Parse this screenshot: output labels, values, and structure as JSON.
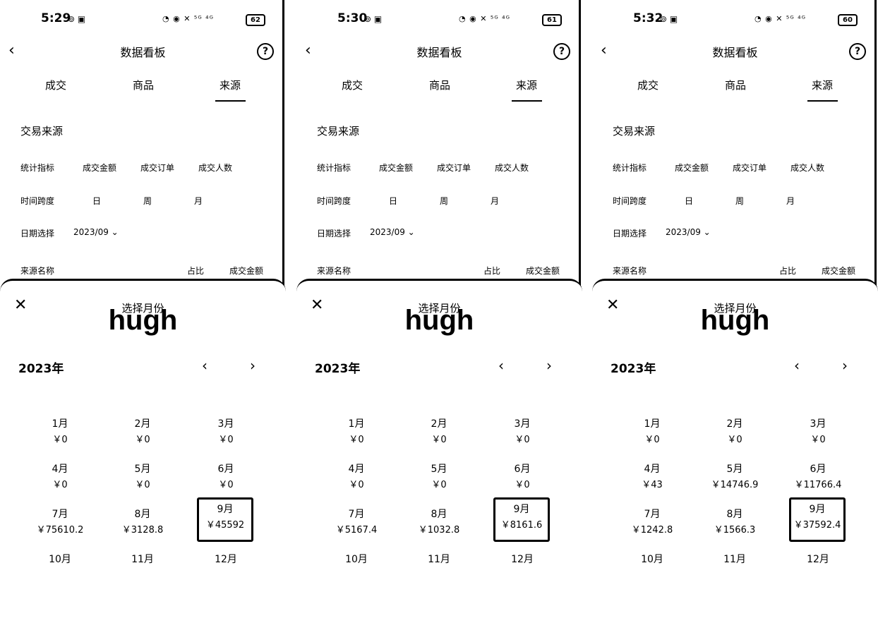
{
  "panels": [
    {
      "status": {
        "time": "5:29",
        "icons": "⊚ ▣",
        "sys": "◔ ◉ ✕ ⁵ᴳ ⁴ᴳ",
        "battery": "62"
      },
      "nav": {
        "back": "‹",
        "title": "数据看板",
        "help": "?"
      },
      "tabs": [
        "成交",
        "商品",
        "来源"
      ],
      "section_title": "交易来源",
      "metrics": {
        "label": "统计指标",
        "options": [
          "成交金额",
          "成交订单",
          "成交人数"
        ]
      },
      "span": {
        "label": "时间跨度",
        "options": [
          "日",
          "周",
          "月"
        ]
      },
      "date": {
        "label": "日期选择",
        "value": "2023/09 ⌄"
      },
      "table": {
        "name": "来源名称",
        "ratio": "占比",
        "amount": "成交金额"
      },
      "sheet": {
        "close": "✕",
        "title": "选择月份",
        "watermark": "hugh",
        "year": "2023年",
        "prev": "‹",
        "next": "›",
        "months": [
          {
            "m": "1月",
            "v": "￥0"
          },
          {
            "m": "2月",
            "v": "￥0"
          },
          {
            "m": "3月",
            "v": "￥0"
          },
          {
            "m": "4月",
            "v": "￥0"
          },
          {
            "m": "5月",
            "v": "￥0"
          },
          {
            "m": "6月",
            "v": "￥0"
          },
          {
            "m": "7月",
            "v": "￥75610.2"
          },
          {
            "m": "8月",
            "v": "￥3128.8"
          },
          {
            "m": "9月",
            "v": "￥45592"
          },
          {
            "m": "10月",
            "v": ""
          },
          {
            "m": "11月",
            "v": ""
          },
          {
            "m": "12月",
            "v": ""
          }
        ]
      }
    },
    {
      "status": {
        "time": "5:30",
        "icons": "⊚ ▣",
        "sys": "◔ ◉ ✕ ⁵ᴳ ⁴ᴳ",
        "battery": "61"
      },
      "nav": {
        "back": "‹",
        "title": "数据看板",
        "help": "?"
      },
      "tabs": [
        "成交",
        "商品",
        "来源"
      ],
      "section_title": "交易来源",
      "metrics": {
        "label": "统计指标",
        "options": [
          "成交金额",
          "成交订单",
          "成交人数"
        ]
      },
      "span": {
        "label": "时间跨度",
        "options": [
          "日",
          "周",
          "月"
        ]
      },
      "date": {
        "label": "日期选择",
        "value": "2023/09 ⌄"
      },
      "table": {
        "name": "来源名称",
        "ratio": "占比",
        "amount": "成交金额"
      },
      "sheet": {
        "close": "✕",
        "title": "选择月份",
        "watermark": "hugh",
        "year": "2023年",
        "prev": "‹",
        "next": "›",
        "months": [
          {
            "m": "1月",
            "v": "￥0"
          },
          {
            "m": "2月",
            "v": "￥0"
          },
          {
            "m": "3月",
            "v": "￥0"
          },
          {
            "m": "4月",
            "v": "￥0"
          },
          {
            "m": "5月",
            "v": "￥0"
          },
          {
            "m": "6月",
            "v": "￥0"
          },
          {
            "m": "7月",
            "v": "￥5167.4"
          },
          {
            "m": "8月",
            "v": "￥1032.8"
          },
          {
            "m": "9月",
            "v": "￥8161.6"
          },
          {
            "m": "10月",
            "v": ""
          },
          {
            "m": "11月",
            "v": ""
          },
          {
            "m": "12月",
            "v": ""
          }
        ]
      }
    },
    {
      "status": {
        "time": "5:32",
        "icons": "⊚ ▣",
        "sys": "◔ ◉ ✕ ⁵ᴳ ⁴ᴳ",
        "battery": "60"
      },
      "nav": {
        "back": "‹",
        "title": "数据看板",
        "help": "?"
      },
      "tabs": [
        "成交",
        "商品",
        "来源"
      ],
      "section_title": "交易来源",
      "metrics": {
        "label": "统计指标",
        "options": [
          "成交金额",
          "成交订单",
          "成交人数"
        ]
      },
      "span": {
        "label": "时间跨度",
        "options": [
          "日",
          "周",
          "月"
        ]
      },
      "date": {
        "label": "日期选择",
        "value": "2023/09 ⌄"
      },
      "table": {
        "name": "来源名称",
        "ratio": "占比",
        "amount": "成交金额"
      },
      "sheet": {
        "close": "✕",
        "title": "选择月份",
        "watermark": "hugh",
        "year": "2023年",
        "prev": "‹",
        "next": "›",
        "months": [
          {
            "m": "1月",
            "v": "￥0"
          },
          {
            "m": "2月",
            "v": "￥0"
          },
          {
            "m": "3月",
            "v": "￥0"
          },
          {
            "m": "4月",
            "v": "￥43"
          },
          {
            "m": "5月",
            "v": "￥14746.9"
          },
          {
            "m": "6月",
            "v": "￥11766.4"
          },
          {
            "m": "7月",
            "v": "￥1242.8"
          },
          {
            "m": "8月",
            "v": "￥1566.3"
          },
          {
            "m": "9月",
            "v": "￥37592.4"
          },
          {
            "m": "10月",
            "v": ""
          },
          {
            "m": "11月",
            "v": ""
          },
          {
            "m": "12月",
            "v": ""
          }
        ]
      }
    }
  ]
}
